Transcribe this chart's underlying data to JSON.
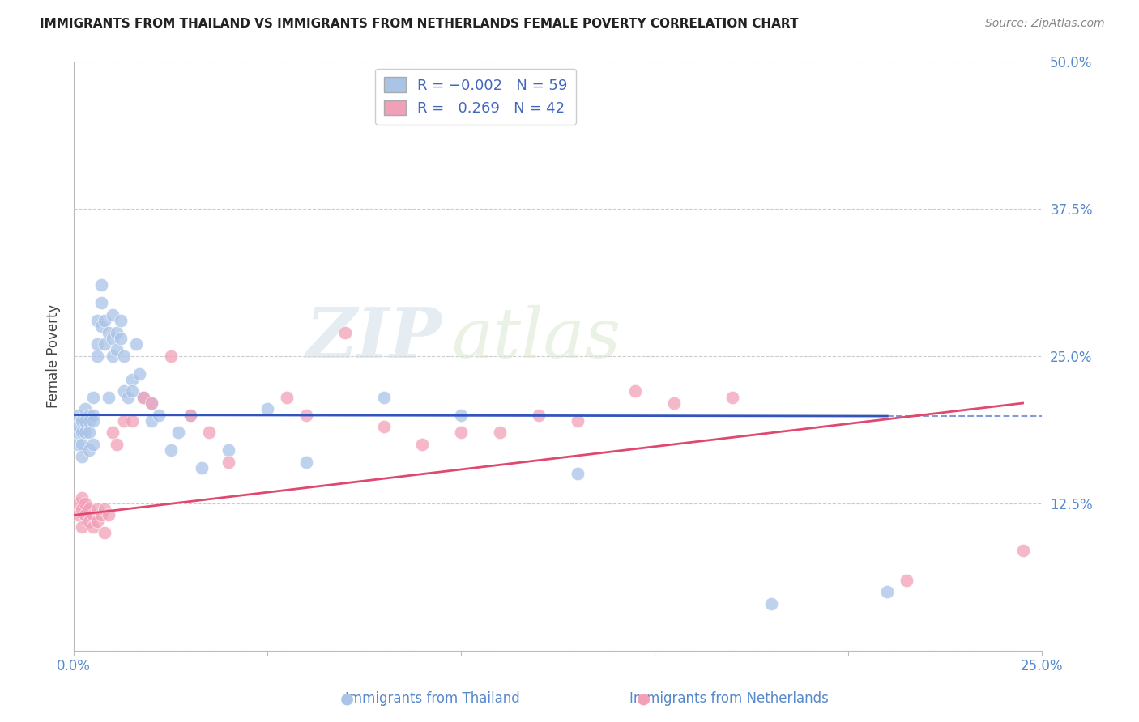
{
  "title": "IMMIGRANTS FROM THAILAND VS IMMIGRANTS FROM NETHERLANDS FEMALE POVERTY CORRELATION CHART",
  "source": "Source: ZipAtlas.com",
  "ylabel": "Female Poverty",
  "xlim": [
    0.0,
    0.25
  ],
  "ylim": [
    0.0,
    0.5
  ],
  "thailand_color": "#aac4e8",
  "netherlands_color": "#f2a0b8",
  "blue_line_color": "#3355bb",
  "pink_line_color": "#e04870",
  "grid_color": "#cccccc",
  "axis_label_color": "#5588cc",
  "watermark_zip": "ZIP",
  "watermark_atlas": "atlas",
  "thailand_x": [
    0.001,
    0.001,
    0.001,
    0.001,
    0.002,
    0.002,
    0.002,
    0.002,
    0.003,
    0.003,
    0.003,
    0.004,
    0.004,
    0.004,
    0.004,
    0.005,
    0.005,
    0.005,
    0.005,
    0.006,
    0.006,
    0.006,
    0.007,
    0.007,
    0.007,
    0.008,
    0.008,
    0.009,
    0.009,
    0.01,
    0.01,
    0.01,
    0.011,
    0.011,
    0.012,
    0.012,
    0.013,
    0.013,
    0.014,
    0.015,
    0.015,
    0.016,
    0.017,
    0.018,
    0.02,
    0.02,
    0.022,
    0.025,
    0.027,
    0.03,
    0.033,
    0.04,
    0.05,
    0.06,
    0.08,
    0.1,
    0.13,
    0.18,
    0.21
  ],
  "thailand_y": [
    0.175,
    0.185,
    0.19,
    0.2,
    0.185,
    0.195,
    0.175,
    0.165,
    0.185,
    0.195,
    0.205,
    0.2,
    0.195,
    0.185,
    0.17,
    0.175,
    0.2,
    0.215,
    0.195,
    0.28,
    0.26,
    0.25,
    0.31,
    0.295,
    0.275,
    0.28,
    0.26,
    0.27,
    0.215,
    0.285,
    0.265,
    0.25,
    0.27,
    0.255,
    0.28,
    0.265,
    0.22,
    0.25,
    0.215,
    0.23,
    0.22,
    0.26,
    0.235,
    0.215,
    0.21,
    0.195,
    0.2,
    0.17,
    0.185,
    0.2,
    0.155,
    0.17,
    0.205,
    0.16,
    0.215,
    0.2,
    0.15,
    0.04,
    0.05
  ],
  "netherlands_x": [
    0.001,
    0.001,
    0.002,
    0.002,
    0.002,
    0.003,
    0.003,
    0.003,
    0.004,
    0.004,
    0.005,
    0.005,
    0.006,
    0.006,
    0.007,
    0.008,
    0.008,
    0.009,
    0.01,
    0.011,
    0.013,
    0.015,
    0.018,
    0.02,
    0.025,
    0.03,
    0.035,
    0.04,
    0.055,
    0.06,
    0.07,
    0.08,
    0.09,
    0.1,
    0.11,
    0.12,
    0.13,
    0.145,
    0.155,
    0.17,
    0.215,
    0.245
  ],
  "netherlands_y": [
    0.115,
    0.125,
    0.12,
    0.13,
    0.105,
    0.12,
    0.115,
    0.125,
    0.11,
    0.12,
    0.115,
    0.105,
    0.12,
    0.11,
    0.115,
    0.1,
    0.12,
    0.115,
    0.185,
    0.175,
    0.195,
    0.195,
    0.215,
    0.21,
    0.25,
    0.2,
    0.185,
    0.16,
    0.215,
    0.2,
    0.27,
    0.19,
    0.175,
    0.185,
    0.185,
    0.2,
    0.195,
    0.22,
    0.21,
    0.215,
    0.06,
    0.085
  ],
  "th_line_x": [
    0.0,
    0.21
  ],
  "th_line_y": [
    0.2,
    0.199
  ],
  "nl_line_x": [
    0.0,
    0.245
  ],
  "nl_line_y": [
    0.115,
    0.21
  ]
}
